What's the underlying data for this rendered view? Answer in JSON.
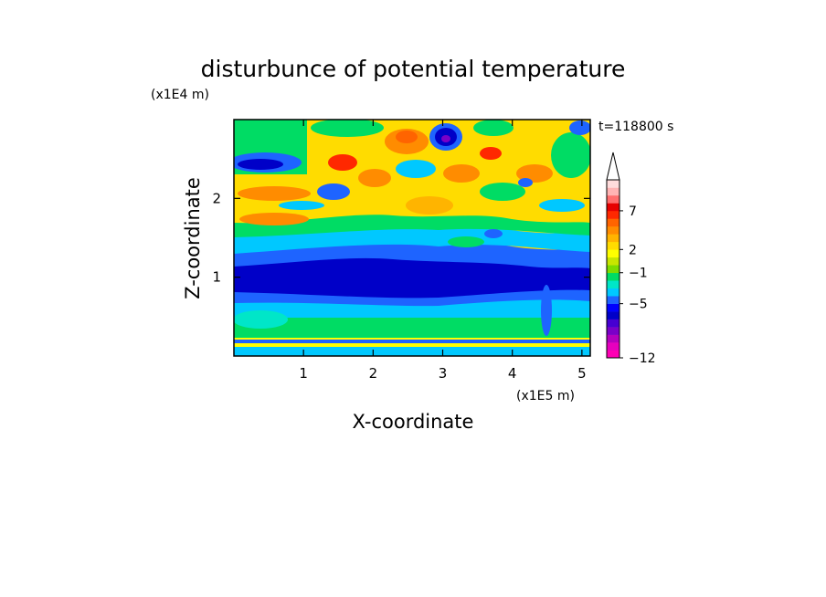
{
  "chart_data": {
    "type": "heatmap",
    "title": "disturbunce of potential temperature",
    "xlabel": "X-coordinate",
    "ylabel": "Z-coordinate",
    "x_unit": "(x1E5 m)",
    "y_unit": "(x1E4 m)",
    "time_label": "t=118800 s",
    "xlim": [
      0,
      5.12
    ],
    "ylim": [
      0,
      3.0
    ],
    "x_ticks": [
      1,
      2,
      3,
      4,
      5
    ],
    "y_ticks": [
      1,
      2
    ],
    "colorbar": {
      "levels": [
        -12,
        -11,
        -10,
        -9,
        -8,
        -7,
        -6,
        -5,
        -4,
        -3,
        -2,
        -1,
        0,
        1,
        2,
        3,
        4,
        5,
        6,
        7,
        8,
        9,
        10
      ],
      "tick_labels": [
        "7",
        "2",
        "−1",
        "−5",
        "−12"
      ],
      "tick_values": [
        7,
        2,
        -1,
        -5,
        -12
      ],
      "extend": "max",
      "colors": [
        "#ff00b4",
        "#e600be",
        "#b400be",
        "#7a00c8",
        "#4600d2",
        "#0000c8",
        "#0000ff",
        "#1e64ff",
        "#00c8ff",
        "#00e6c8",
        "#00dc64",
        "#7ddc00",
        "#c8e600",
        "#ffff00",
        "#ffdc00",
        "#ffb400",
        "#ff8c00",
        "#ff6400",
        "#ff2800",
        "#e60000",
        "#ff6e6e",
        "#ffb4b4",
        "#ffdcdc"
      ]
    }
  }
}
